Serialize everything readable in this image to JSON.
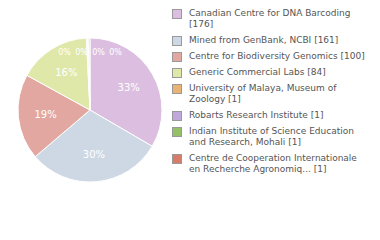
{
  "chart_data": {
    "type": "pie",
    "categories": [
      "Canadian Centre for DNA Barcoding [176]",
      "Mined from GenBank, NCBI [161]",
      "Centre for Biodiversity Genomics [100]",
      "Generic Commercial Labs [84]",
      "University of Malaya, Museum of Zoology [1]",
      "Robarts Research Institute [1]",
      "Indian Institute of Science Education and Research, Mohali [1]",
      "Centre de Cooperation Internationale en Recherche Agronomiq... [1]"
    ],
    "values": [
      33,
      30,
      19,
      16,
      0.2,
      0.2,
      0.2,
      0.2
    ],
    "value_labels": [
      "33%",
      "30%",
      "19%",
      "16%",
      "0%",
      "0%",
      "0%",
      "0%"
    ],
    "data_labels": true,
    "colors": [
      "#dcbfe0",
      "#cdd8e4",
      "#e2a7a1",
      "#dfe8a9",
      "#e8b374",
      "#bfa9dc",
      "#95c065",
      "#d77b6b"
    ]
  }
}
